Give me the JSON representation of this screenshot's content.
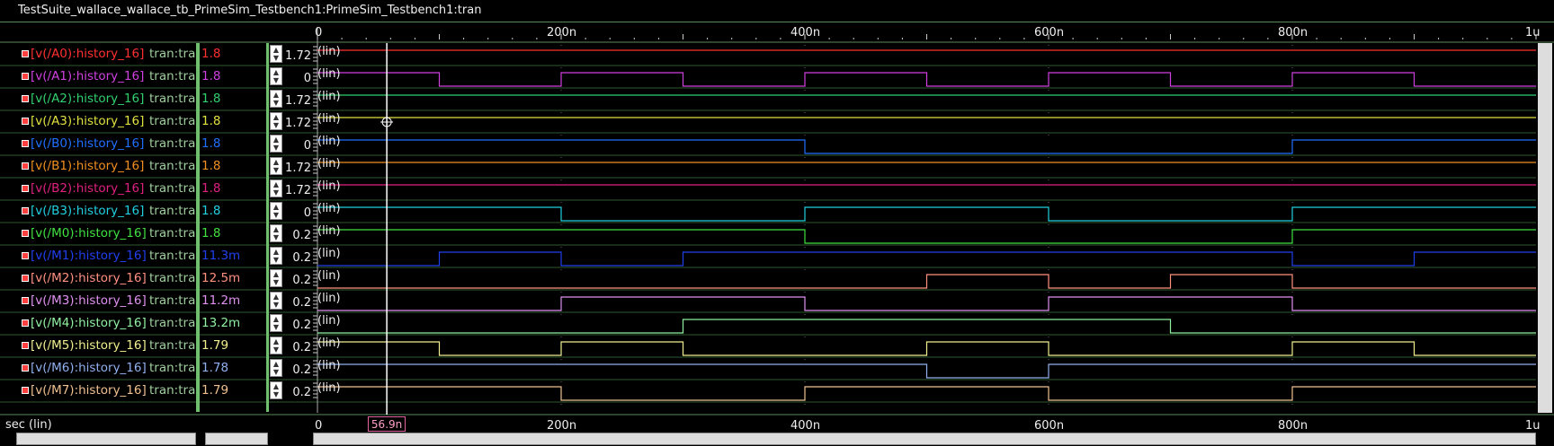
{
  "window": {
    "title": "TestSuite_wallace_wallace_tb_PrimeSim_Testbench1:PrimeSim_Testbench1:tran"
  },
  "axis": {
    "top_ticks": [
      "0",
      "200n",
      "400n",
      "600n",
      "800n",
      "1u"
    ],
    "bottom_ticks": [
      "0",
      "200n",
      "400n",
      "600n",
      "800n",
      "1u"
    ],
    "xlabel": "sec (lin)",
    "cursor_label": "56.9n",
    "cursor_time_ns": 56.9,
    "scale_label": "(lin)"
  },
  "signals": [
    {
      "name": "[v(/A0):history_16]",
      "tran": "tran:tra",
      "value": "1.8",
      "ytick": "1.72",
      "color": "#ff3030",
      "wave": [
        [
          0,
          1
        ]
      ]
    },
    {
      "name": "[v(/A1):history_16]",
      "tran": "tran:tra",
      "value": "1.8",
      "ytick": "0",
      "color": "#d040e0",
      "wave": [
        [
          0,
          1
        ],
        [
          100,
          0
        ],
        [
          200,
          1
        ],
        [
          300,
          0
        ],
        [
          400,
          1
        ],
        [
          500,
          0
        ],
        [
          600,
          1
        ],
        [
          700,
          0
        ],
        [
          800,
          1
        ],
        [
          900,
          0
        ]
      ]
    },
    {
      "name": "[v(/A2):history_16]",
      "tran": "tran:tra",
      "value": "1.8",
      "ytick": "1.72",
      "color": "#30d070",
      "wave": [
        [
          0,
          1
        ]
      ]
    },
    {
      "name": "[v(/A3):history_16]",
      "tran": "tran:tra",
      "value": "1.8",
      "ytick": "1.72",
      "color": "#e0e040",
      "wave": [
        [
          0,
          1
        ]
      ]
    },
    {
      "name": "[v(/B0):history_16]",
      "tran": "tran:tra",
      "value": "1.8",
      "ytick": "0",
      "color": "#2070ff",
      "wave": [
        [
          0,
          1
        ],
        [
          400,
          0
        ],
        [
          800,
          1
        ]
      ]
    },
    {
      "name": "[v(/B1):history_16]",
      "tran": "tran:tra",
      "value": "1.8",
      "ytick": "1.72",
      "color": "#f09020",
      "wave": [
        [
          0,
          1
        ]
      ]
    },
    {
      "name": "[v(/B2):history_16]",
      "tran": "tran:tra",
      "value": "1.8",
      "ytick": "1.72",
      "color": "#e02080",
      "wave": [
        [
          0,
          1
        ]
      ]
    },
    {
      "name": "[v(/B3):history_16]",
      "tran": "tran:tra",
      "value": "1.8",
      "ytick": "0",
      "color": "#20d0e0",
      "wave": [
        [
          0,
          1
        ],
        [
          200,
          0
        ],
        [
          400,
          1
        ],
        [
          600,
          0
        ],
        [
          800,
          1
        ]
      ]
    },
    {
      "name": "[v(/M0):history_16]",
      "tran": "tran:tra",
      "value": "1.8",
      "ytick": "0.2",
      "color": "#40e040",
      "wave": [
        [
          0,
          1
        ],
        [
          400,
          0
        ],
        [
          800,
          1
        ]
      ]
    },
    {
      "name": "[v(/M1):history_16]",
      "tran": "tran:tra",
      "value": "11.3m",
      "ytick": "0.2",
      "color": "#2040f0",
      "wave": [
        [
          0,
          0
        ],
        [
          100,
          1
        ],
        [
          200,
          0
        ],
        [
          300,
          1
        ],
        [
          800,
          0
        ],
        [
          900,
          1
        ]
      ]
    },
    {
      "name": "[v(/M2):history_16]",
      "tran": "tran:tra",
      "value": "12.5m",
      "ytick": "0.2",
      "color": "#ff9080",
      "wave": [
        [
          0,
          0
        ],
        [
          500,
          1
        ],
        [
          600,
          0
        ],
        [
          700,
          1
        ],
        [
          800,
          0
        ]
      ]
    },
    {
      "name": "[v(/M3):history_16]",
      "tran": "tran:tra",
      "value": "11.2m",
      "ytick": "0.2",
      "color": "#e090f0",
      "wave": [
        [
          0,
          0
        ],
        [
          200,
          1
        ],
        [
          400,
          0
        ],
        [
          600,
          1
        ],
        [
          800,
          0
        ]
      ]
    },
    {
      "name": "[v(/M4):history_16]",
      "tran": "tran:tra",
      "value": "13.2m",
      "ytick": "0.2",
      "color": "#90f0a0",
      "wave": [
        [
          0,
          0
        ],
        [
          300,
          1
        ],
        [
          700,
          0
        ]
      ]
    },
    {
      "name": "[v(/M5):history_16]",
      "tran": "tran:tra",
      "value": "1.79",
      "ytick": "0.2",
      "color": "#f0f090",
      "wave": [
        [
          0,
          1
        ],
        [
          100,
          0
        ],
        [
          200,
          1
        ],
        [
          300,
          0
        ],
        [
          500,
          1
        ],
        [
          600,
          0
        ],
        [
          800,
          1
        ],
        [
          900,
          0
        ]
      ]
    },
    {
      "name": "[v(/M6):history_16]",
      "tran": "tran:tra",
      "value": "1.78",
      "ytick": "0.2",
      "color": "#90b0f0",
      "wave": [
        [
          0,
          1
        ],
        [
          500,
          0
        ],
        [
          600,
          1
        ]
      ]
    },
    {
      "name": "[v(/M7):history_16]",
      "tran": "tran:tra",
      "value": "1.79",
      "ytick": "0.2",
      "color": "#f0c090",
      "wave": [
        [
          0,
          1
        ],
        [
          200,
          0
        ],
        [
          400,
          1
        ],
        [
          600,
          0
        ],
        [
          800,
          1
        ]
      ]
    }
  ]
}
